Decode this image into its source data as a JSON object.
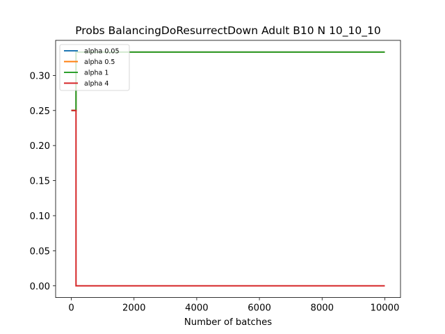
{
  "chart_data": {
    "type": "line",
    "title": "Probs BalancingDoResurrectDown Adult B10 N 10_10_10",
    "xlabel": "Number of batches",
    "ylabel": "",
    "xlim": [
      -500,
      10500
    ],
    "ylim": [
      -0.0167,
      0.35
    ],
    "xticks": [
      0,
      2000,
      4000,
      6000,
      8000,
      10000
    ],
    "xtick_labels": [
      "0",
      "2000",
      "4000",
      "6000",
      "8000",
      "10000"
    ],
    "yticks": [
      0.0,
      0.05,
      0.1,
      0.15,
      0.2,
      0.25,
      0.3
    ],
    "ytick_labels": [
      "0.00",
      "0.05",
      "0.10",
      "0.15",
      "0.20",
      "0.25",
      "0.30"
    ],
    "grid": false,
    "legend_placement": "top-left",
    "series": [
      {
        "name": "alpha 0.05",
        "color": "#1f77b4",
        "x": [
          0,
          150,
          150,
          10000
        ],
        "y": [
          0.25,
          0.25,
          0.3333,
          0.3333
        ]
      },
      {
        "name": "alpha 0.5",
        "color": "#ff7f0e",
        "x": [
          0,
          150,
          150,
          10000
        ],
        "y": [
          0.25,
          0.25,
          0.3333,
          0.3333
        ]
      },
      {
        "name": "alpha 1",
        "color": "#2ca02c",
        "x": [
          0,
          150,
          150,
          10000
        ],
        "y": [
          0.25,
          0.25,
          0.3333,
          0.3333
        ]
      },
      {
        "name": "alpha 4",
        "color": "#d62728",
        "x": [
          0,
          150,
          150,
          10000
        ],
        "y": [
          0.25,
          0.25,
          0.0,
          0.0
        ]
      }
    ]
  }
}
